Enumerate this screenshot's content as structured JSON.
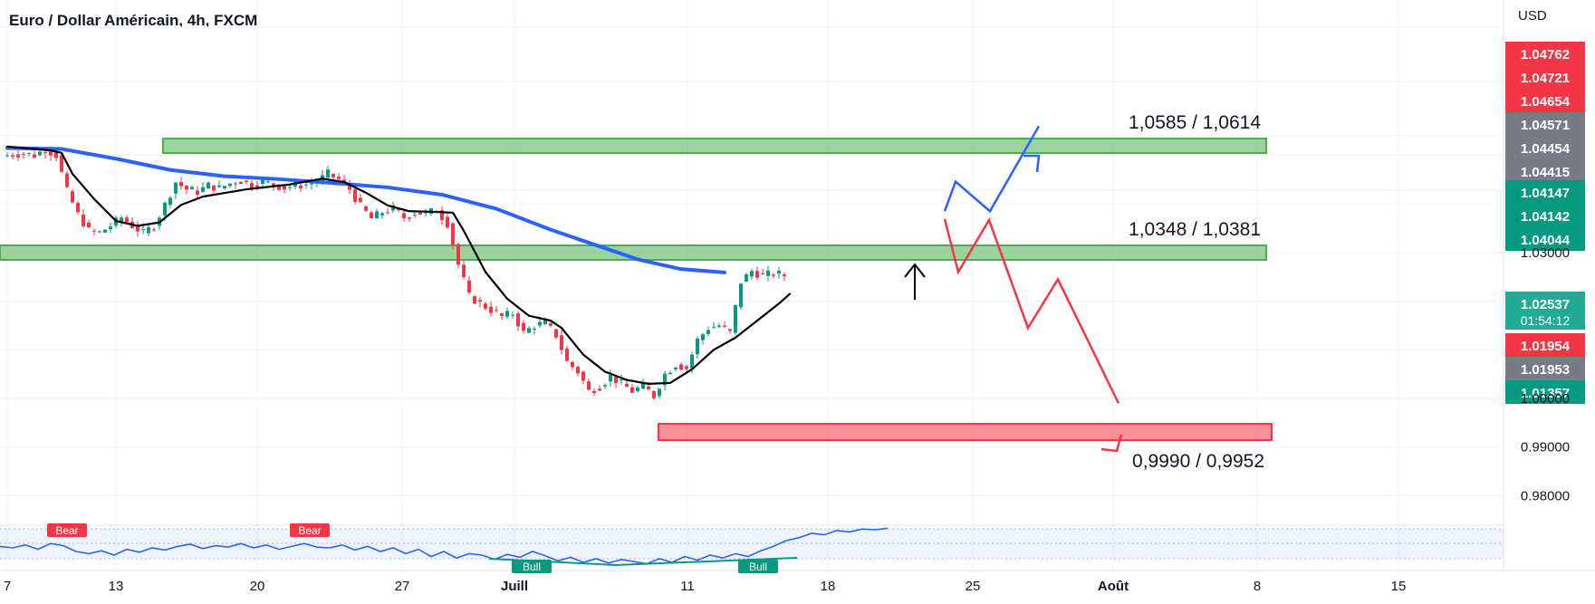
{
  "header": {
    "symbol_title": "Euro / Dollar Américain, 4h, FXCM",
    "currency": "USD"
  },
  "chart_data": {
    "type": "candlestick",
    "title": "Euro / Dollar Américain, 4h, FXCM",
    "x_tick_labels": [
      "7",
      "13",
      "20",
      "27",
      "Juill",
      "11",
      "18",
      "25",
      "Août",
      "8",
      "15"
    ],
    "y_tick_labels": [
      "1.03000",
      "1.00000",
      "0.99000",
      "0.98000"
    ],
    "y_range": [
      0.975,
      1.084
    ],
    "price_badges": [
      {
        "value": "1.04762",
        "color": "#f23645"
      },
      {
        "value": "1.04721",
        "color": "#f23645"
      },
      {
        "value": "1.04654",
        "color": "#f23645"
      },
      {
        "value": "1.04571",
        "color": "#787b86"
      },
      {
        "value": "1.04454",
        "color": "#787b86"
      },
      {
        "value": "1.04415",
        "color": "#787b86"
      },
      {
        "value": "1.04147",
        "color": "#089981"
      },
      {
        "value": "1.04142",
        "color": "#089981"
      },
      {
        "value": "1.04044",
        "color": "#089981"
      },
      {
        "value": "1.02537",
        "color": "#22ab94",
        "countdown": "01:54:12"
      },
      {
        "value": "1.01954",
        "color": "#f23645"
      },
      {
        "value": "1.01953",
        "color": "#787b86"
      },
      {
        "value": "1.01357",
        "color": "#089981"
      }
    ],
    "zones": [
      {
        "label": "1,0585  /  1,0614",
        "low": 1.0585,
        "high": 1.0614,
        "color": "#4caf50"
      },
      {
        "label": "1,0348  /  1,0381",
        "low": 1.0348,
        "high": 1.0381,
        "color": "#4caf50"
      },
      {
        "label": "0,9990  /  0,9952",
        "low": 0.9952,
        "high": 0.999,
        "color": "#f23645"
      }
    ],
    "price_path": [
      [
        0,
        1.0498
      ],
      [
        1,
        1.0502
      ],
      [
        2,
        1.0504
      ],
      [
        3,
        1.05
      ],
      [
        4,
        1.0513
      ],
      [
        5,
        1.05
      ],
      [
        6,
        1.0426
      ],
      [
        7,
        1.0378
      ],
      [
        8,
        1.0345
      ],
      [
        9,
        1.0341
      ],
      [
        10,
        1.0355
      ],
      [
        11,
        1.0372
      ],
      [
        12,
        1.0355
      ],
      [
        13,
        1.034
      ],
      [
        14,
        1.0355
      ],
      [
        15,
        1.0398
      ],
      [
        16,
        1.0445
      ],
      [
        17,
        1.043
      ],
      [
        18,
        1.0425
      ],
      [
        19,
        1.0438
      ],
      [
        20,
        1.0432
      ],
      [
        21,
        1.0442
      ],
      [
        22,
        1.0448
      ],
      [
        23,
        1.0438
      ],
      [
        24,
        1.0445
      ],
      [
        25,
        1.044
      ],
      [
        26,
        1.0433
      ],
      [
        27,
        1.0438
      ],
      [
        28,
        1.044
      ],
      [
        29,
        1.0446
      ],
      [
        30,
        1.0462
      ],
      [
        31,
        1.045
      ],
      [
        32,
        1.043
      ],
      [
        33,
        1.0395
      ],
      [
        34,
        1.037
      ],
      [
        35,
        1.0383
      ],
      [
        36,
        1.039
      ],
      [
        37,
        1.0372
      ],
      [
        38,
        1.0382
      ],
      [
        39,
        1.038
      ],
      [
        40,
        1.0387
      ],
      [
        41,
        1.036
      ],
      [
        42,
        1.0275
      ],
      [
        43,
        1.021
      ],
      [
        44,
        1.0195
      ],
      [
        45,
        1.0182
      ],
      [
        46,
        1.0168
      ],
      [
        47,
        1.0175
      ],
      [
        48,
        1.0135
      ],
      [
        49,
        1.015
      ],
      [
        50,
        1.0155
      ],
      [
        51,
        1.013
      ],
      [
        52,
        1.0075
      ],
      [
        53,
        1.0055
      ],
      [
        54,
        1.0015
      ],
      [
        55,
        1.0025
      ],
      [
        56,
        1.0045
      ],
      [
        57,
        1.003
      ],
      [
        58,
        1.0015
      ],
      [
        59,
        1.0025
      ],
      [
        60,
        1.0005
      ],
      [
        61,
        1.005
      ],
      [
        62,
        1.007
      ],
      [
        63,
        1.0062
      ],
      [
        64,
        1.012
      ],
      [
        65,
        1.0145
      ],
      [
        66,
        1.015
      ],
      [
        67,
        1.0135
      ],
      [
        68,
        1.024
      ],
      [
        69,
        1.0262
      ],
      [
        70,
        1.0252
      ],
      [
        71,
        1.0257
      ],
      [
        72,
        1.0253
      ]
    ],
    "ema_short": [
      [
        0,
        1.0518
      ],
      [
        4,
        1.051
      ],
      [
        5,
        1.0505
      ],
      [
        6,
        1.0462
      ],
      [
        8,
        1.041
      ],
      [
        10,
        1.0365
      ],
      [
        12,
        1.0355
      ],
      [
        14,
        1.0362
      ],
      [
        16,
        1.0398
      ],
      [
        18,
        1.0415
      ],
      [
        22,
        1.043
      ],
      [
        26,
        1.044
      ],
      [
        29,
        1.0452
      ],
      [
        31,
        1.0445
      ],
      [
        33,
        1.0423
      ],
      [
        35,
        1.0397
      ],
      [
        37,
        1.0385
      ],
      [
        39,
        1.0384
      ],
      [
        41,
        1.0382
      ],
      [
        42,
        1.0345
      ],
      [
        44,
        1.026
      ],
      [
        46,
        1.0205
      ],
      [
        48,
        1.017
      ],
      [
        50,
        1.016
      ],
      [
        51,
        1.0145
      ],
      [
        53,
        1.009
      ],
      [
        55,
        1.0055
      ],
      [
        57,
        1.0038
      ],
      [
        59,
        1.003
      ],
      [
        61,
        1.0032
      ],
      [
        63,
        1.006
      ],
      [
        65,
        1.01
      ],
      [
        67,
        1.0125
      ],
      [
        69,
        1.016
      ],
      [
        71,
        1.0195
      ],
      [
        72,
        1.0215
      ]
    ],
    "ema_long": [
      [
        0,
        1.0515
      ],
      [
        5,
        1.0513
      ],
      [
        10,
        1.0493
      ],
      [
        15,
        1.047
      ],
      [
        20,
        1.0457
      ],
      [
        25,
        1.0451
      ],
      [
        30,
        1.0443
      ],
      [
        35,
        1.0434
      ],
      [
        40,
        1.0419
      ],
      [
        45,
        1.039
      ],
      [
        50,
        1.0347
      ],
      [
        55,
        1.0309
      ],
      [
        58,
        1.0286
      ],
      [
        62,
        1.0266
      ],
      [
        66,
        1.0259
      ]
    ],
    "projection_up": [
      [
        1.0385
      ],
      [
        1.0446
      ],
      [
        1.0385
      ],
      [
        1.056
      ]
    ],
    "projection_down": [
      [
        1.0369
      ],
      [
        1.026
      ],
      [
        1.0367
      ],
      [
        1.0145
      ],
      [
        1.0245
      ],
      [
        0.999
      ]
    ],
    "rsi": [
      62,
      60,
      64,
      58,
      66,
      63,
      55,
      52,
      56,
      50,
      58,
      54,
      60,
      57,
      62,
      65,
      59,
      63,
      61,
      66,
      60,
      64,
      58,
      62,
      66,
      61,
      60,
      64,
      57,
      62,
      55,
      60,
      52,
      58,
      48,
      55,
      46,
      52,
      50,
      44,
      51,
      47,
      55,
      49,
      42,
      47,
      40,
      45,
      39,
      44,
      41,
      38,
      45,
      40,
      48,
      43,
      50,
      46,
      52,
      48,
      56,
      62,
      70,
      74,
      80,
      78,
      84,
      82,
      86,
      85,
      87
    ],
    "rsi_labels": [
      "Bear",
      "Bear",
      "Bull",
      "Bull"
    ]
  }
}
